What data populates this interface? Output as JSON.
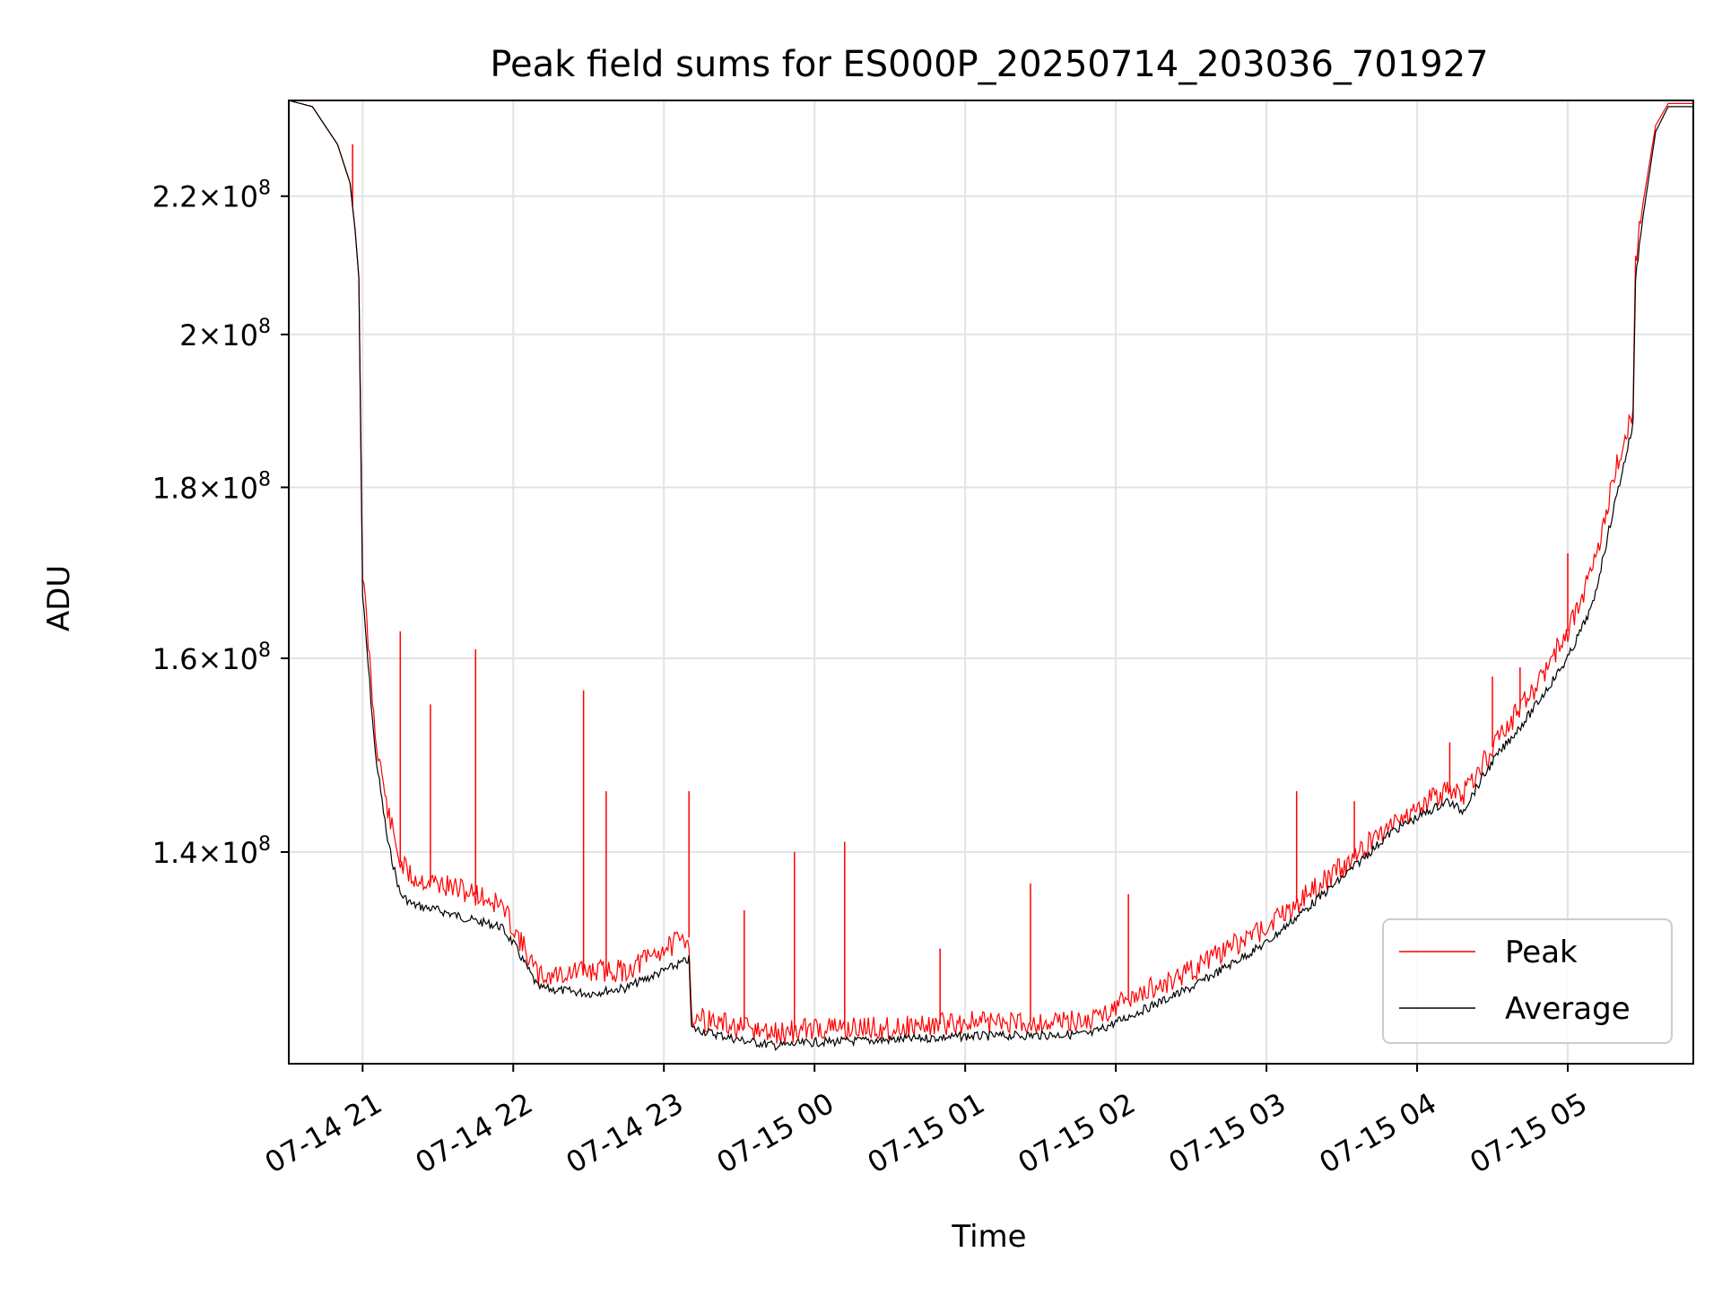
{
  "chart_data": {
    "type": "line",
    "title": "Peak field sums for ES000P_20250714_203036_701927",
    "xlabel": "Time",
    "ylabel": "ADU",
    "y_scale": "log",
    "grid": true,
    "legend_position": "lower right",
    "xlim": [
      "2025-07-14T20:30:36",
      "2025-07-15T05:50:00"
    ],
    "ylim": [
      121000000,
      235000000
    ],
    "x_ticks": [
      {
        "value": "2025-07-14T21:00:00",
        "label": "07-14 21"
      },
      {
        "value": "2025-07-14T22:00:00",
        "label": "07-14 22"
      },
      {
        "value": "2025-07-14T23:00:00",
        "label": "07-14 23"
      },
      {
        "value": "2025-07-15T00:00:00",
        "label": "07-15 00"
      },
      {
        "value": "2025-07-15T01:00:00",
        "label": "07-15 01"
      },
      {
        "value": "2025-07-15T02:00:00",
        "label": "07-15 02"
      },
      {
        "value": "2025-07-15T03:00:00",
        "label": "07-15 03"
      },
      {
        "value": "2025-07-15T04:00:00",
        "label": "07-15 04"
      },
      {
        "value": "2025-07-15T05:00:00",
        "label": "07-15 05"
      }
    ],
    "y_ticks": [
      {
        "value": 140000000,
        "mantissa": "1.4",
        "base": "10",
        "exponent": "8"
      },
      {
        "value": 160000000,
        "mantissa": "1.6",
        "base": "10",
        "exponent": "8"
      },
      {
        "value": 180000000,
        "mantissa": "1.8",
        "base": "10",
        "exponent": "8"
      },
      {
        "value": 200000000,
        "mantissa": "2",
        "base": "10",
        "exponent": "8"
      },
      {
        "value": 220000000,
        "mantissa": "2.2",
        "base": "10",
        "exponent": "8"
      }
    ],
    "series": [
      {
        "name": "Peak",
        "color": "#ff0000",
        "x": [
          "2025-07-14T20:30:36",
          "2025-07-14T20:40:00",
          "2025-07-14T20:50:00",
          "2025-07-14T20:55:00",
          "2025-07-14T20:57:00",
          "2025-07-14T20:58:30",
          "2025-07-14T21:00:00",
          "2025-07-14T21:05:00",
          "2025-07-14T21:10:00",
          "2025-07-14T21:15:00",
          "2025-07-14T21:20:00",
          "2025-07-14T21:30:00",
          "2025-07-14T21:45:00",
          "2025-07-14T21:55:00",
          "2025-07-14T22:00:00",
          "2025-07-14T22:10:00",
          "2025-07-14T22:30:00",
          "2025-07-14T22:45:00",
          "2025-07-14T23:00:00",
          "2025-07-14T23:10:00",
          "2025-07-14T23:11:00",
          "2025-07-14T23:30:00",
          "2025-07-14T23:45:00",
          "2025-07-15T00:00:00",
          "2025-07-15T00:30:00",
          "2025-07-15T01:00:00",
          "2025-07-15T01:30:00",
          "2025-07-15T01:50:00",
          "2025-07-15T02:00:00",
          "2025-07-15T02:30:00",
          "2025-07-15T03:00:00",
          "2025-07-15T03:30:00",
          "2025-07-15T03:50:00",
          "2025-07-15T04:12:00",
          "2025-07-15T04:18:00",
          "2025-07-15T04:30:00",
          "2025-07-15T04:45:00",
          "2025-07-15T05:00:00",
          "2025-07-15T05:10:00",
          "2025-07-15T05:18:00",
          "2025-07-15T05:26:00",
          "2025-07-15T05:27:00",
          "2025-07-15T05:30:00",
          "2025-07-15T05:35:00",
          "2025-07-15T05:40:00",
          "2025-07-15T05:50:00"
        ],
        "y": [
          235000000,
          234000000,
          228000000,
          222000000,
          215000000,
          208000000,
          170000000,
          152000000,
          144000000,
          139000000,
          137500000,
          137000000,
          136000000,
          135000000,
          133000000,
          128500000,
          129000000,
          129000000,
          131000000,
          132000000,
          125000000,
          124000000,
          123500000,
          124000000,
          124000000,
          124500000,
          124500000,
          124700000,
          126000000,
          129000000,
          133000000,
          138500000,
          143000000,
          146000000,
          145500000,
          150500000,
          156000000,
          163000000,
          170000000,
          181000000,
          190000000,
          210000000,
          219000000,
          231000000,
          234500000,
          234500000
        ],
        "spikes": [
          {
            "x": "2025-07-14T20:56:00",
            "y": 228000000
          },
          {
            "x": "2025-07-14T21:15:00",
            "y": 163000000
          },
          {
            "x": "2025-07-14T21:27:00",
            "y": 155000000
          },
          {
            "x": "2025-07-14T21:45:00",
            "y": 161000000
          },
          {
            "x": "2025-07-14T22:28:00",
            "y": 156500000
          },
          {
            "x": "2025-07-14T22:37:00",
            "y": 146000000
          },
          {
            "x": "2025-07-14T23:10:00",
            "y": 146000000
          },
          {
            "x": "2025-07-14T23:32:00",
            "y": 134500000
          },
          {
            "x": "2025-07-14T23:52:00",
            "y": 140000000
          },
          {
            "x": "2025-07-15T00:12:00",
            "y": 141000000
          },
          {
            "x": "2025-07-15T00:50:00",
            "y": 131000000
          },
          {
            "x": "2025-07-15T01:26:00",
            "y": 137000000
          },
          {
            "x": "2025-07-15T02:05:00",
            "y": 136000000
          },
          {
            "x": "2025-07-15T03:12:00",
            "y": 146000000
          },
          {
            "x": "2025-07-15T03:35:00",
            "y": 145000000
          },
          {
            "x": "2025-07-15T04:13:00",
            "y": 151000000
          },
          {
            "x": "2025-07-15T04:30:00",
            "y": 158000000
          },
          {
            "x": "2025-07-15T04:41:00",
            "y": 159000000
          },
          {
            "x": "2025-07-15T05:00:00",
            "y": 172000000
          }
        ]
      },
      {
        "name": "Average",
        "color": "#000000",
        "x": [
          "2025-07-14T20:30:36",
          "2025-07-14T20:40:00",
          "2025-07-14T20:50:00",
          "2025-07-14T20:55:00",
          "2025-07-14T20:57:00",
          "2025-07-14T20:58:30",
          "2025-07-14T21:00:00",
          "2025-07-14T21:05:00",
          "2025-07-14T21:10:00",
          "2025-07-14T21:15:00",
          "2025-07-14T21:20:00",
          "2025-07-14T21:30:00",
          "2025-07-14T21:45:00",
          "2025-07-14T21:55:00",
          "2025-07-14T22:00:00",
          "2025-07-14T22:10:00",
          "2025-07-14T22:30:00",
          "2025-07-14T22:45:00",
          "2025-07-14T23:00:00",
          "2025-07-14T23:10:00",
          "2025-07-14T23:11:00",
          "2025-07-14T23:30:00",
          "2025-07-14T23:45:00",
          "2025-07-15T00:00:00",
          "2025-07-15T00:30:00",
          "2025-07-15T01:00:00",
          "2025-07-15T01:30:00",
          "2025-07-15T01:50:00",
          "2025-07-15T02:00:00",
          "2025-07-15T02:30:00",
          "2025-07-15T03:00:00",
          "2025-07-15T03:30:00",
          "2025-07-15T03:50:00",
          "2025-07-15T04:12:00",
          "2025-07-15T04:18:00",
          "2025-07-15T04:30:00",
          "2025-07-15T04:45:00",
          "2025-07-15T05:00:00",
          "2025-07-15T05:10:00",
          "2025-07-15T05:18:00",
          "2025-07-15T05:26:00",
          "2025-07-15T05:27:00",
          "2025-07-15T05:30:00",
          "2025-07-15T05:35:00",
          "2025-07-15T05:40:00",
          "2025-07-15T05:50:00"
        ],
        "y": [
          235000000,
          234000000,
          228000000,
          222000000,
          215000000,
          208000000,
          167000000,
          150000000,
          141000000,
          136000000,
          135000000,
          134500000,
          133500000,
          133000000,
          131500000,
          127500000,
          127000000,
          127500000,
          129000000,
          130000000,
          124000000,
          123000000,
          122500000,
          122800000,
          123000000,
          123300000,
          123400000,
          123500000,
          124500000,
          127500000,
          131500000,
          137500000,
          142000000,
          145000000,
          144000000,
          149000000,
          154000000,
          160000000,
          166000000,
          177000000,
          188000000,
          208000000,
          217000000,
          230000000,
          234000000,
          234000000
        ]
      }
    ]
  }
}
